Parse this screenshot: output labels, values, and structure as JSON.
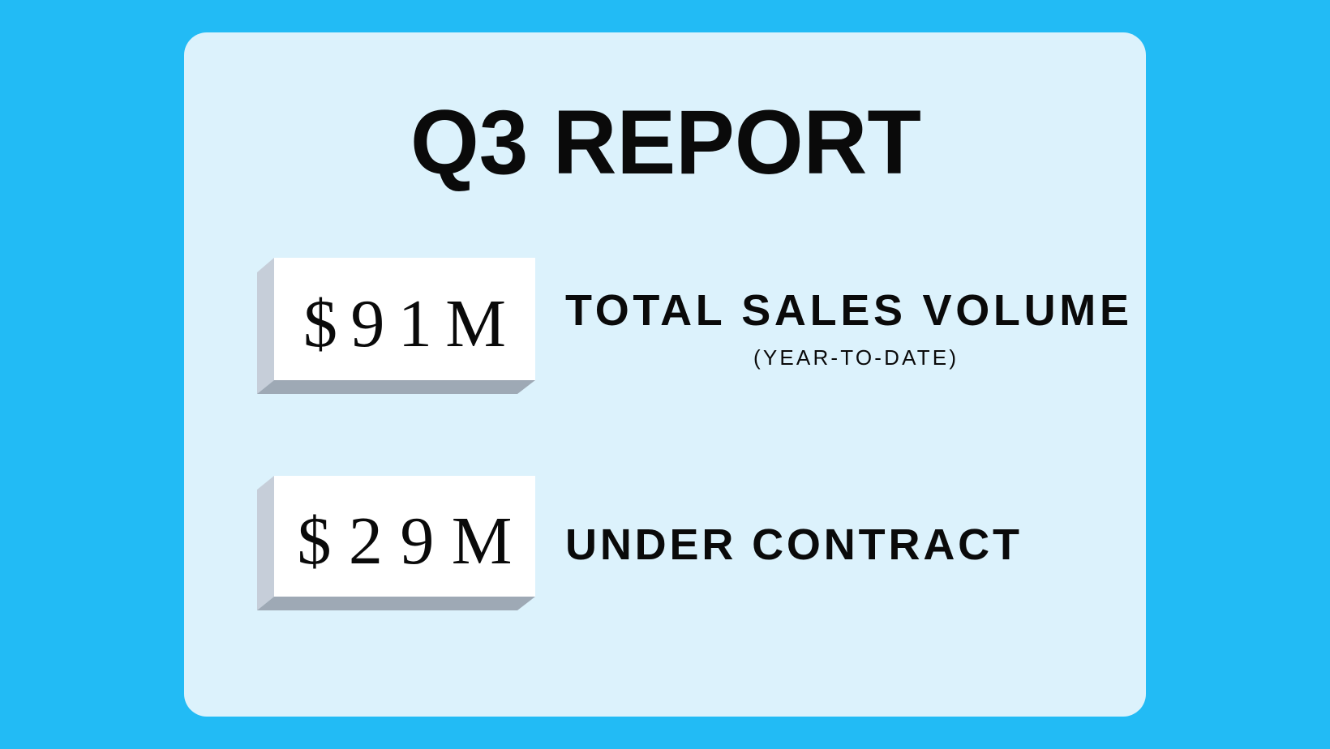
{
  "title": "Q3 REPORT",
  "stats": [
    {
      "value": "$91M",
      "label": "TOTAL SALES VOLUME",
      "sublabel": "(YEAR-TO-DATE)"
    },
    {
      "value": "$29M",
      "label": "UNDER CONTRACT"
    }
  ]
}
